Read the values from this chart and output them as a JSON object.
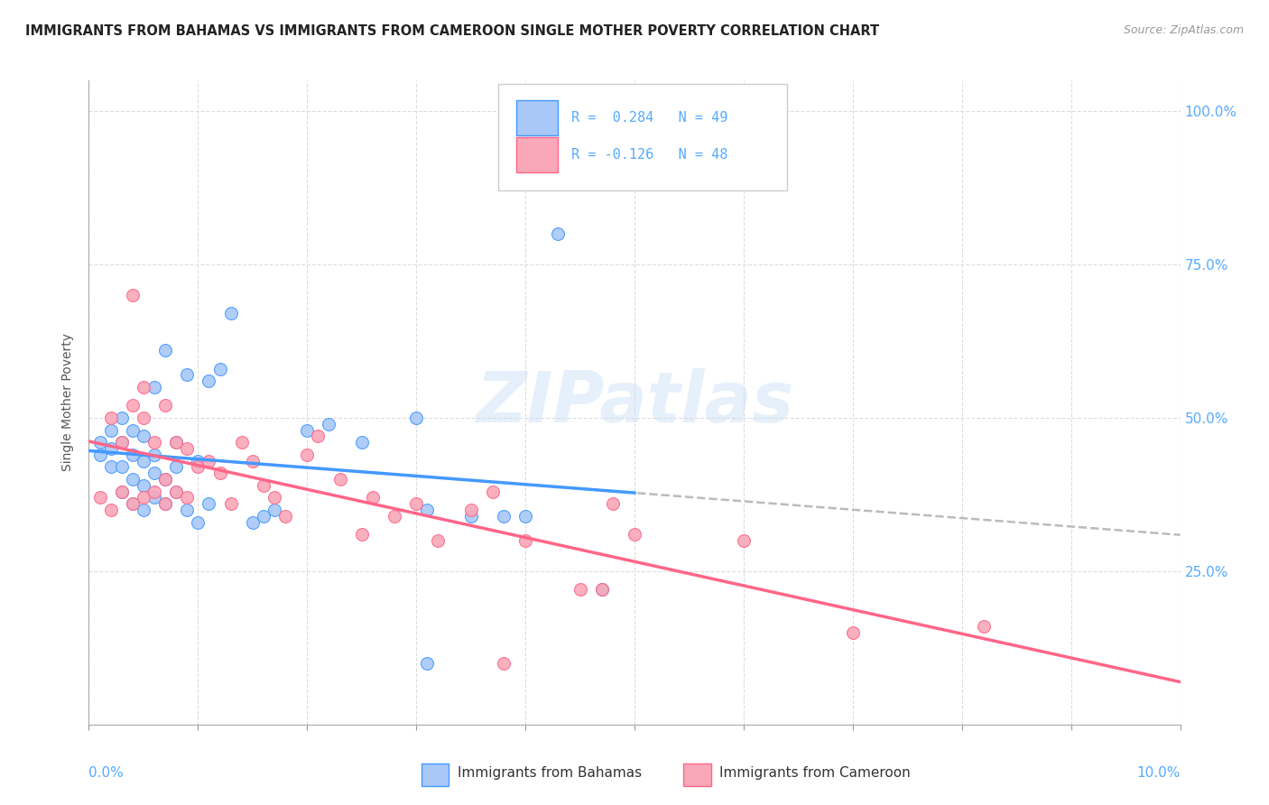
{
  "title": "IMMIGRANTS FROM BAHAMAS VS IMMIGRANTS FROM CAMEROON SINGLE MOTHER POVERTY CORRELATION CHART",
  "source": "Source: ZipAtlas.com",
  "ylabel": "Single Mother Poverty",
  "watermark": "ZIPatlas",
  "color_bahamas": "#a8c8f8",
  "color_cameroon": "#f8a8b8",
  "line_color_bahamas": "#4499ff",
  "line_color_cameroon": "#ff6688",
  "dashed_color": "#bbbbbb",
  "background_color": "#ffffff",
  "grid_color": "#dddddd",
  "xlim": [
    0.0,
    0.1
  ],
  "ylim": [
    0.0,
    1.05
  ],
  "right_tick_color": "#55aaff",
  "legend_text_color": "#55aaff",
  "bahamas_x": [
    0.001,
    0.001,
    0.002,
    0.002,
    0.002,
    0.003,
    0.003,
    0.003,
    0.003,
    0.004,
    0.004,
    0.004,
    0.004,
    0.005,
    0.005,
    0.005,
    0.005,
    0.006,
    0.006,
    0.006,
    0.006,
    0.007,
    0.007,
    0.007,
    0.008,
    0.008,
    0.008,
    0.009,
    0.009,
    0.01,
    0.01,
    0.011,
    0.011,
    0.012,
    0.013,
    0.015,
    0.016,
    0.017,
    0.02,
    0.022,
    0.025,
    0.03,
    0.031,
    0.035,
    0.038,
    0.04,
    0.043,
    0.047,
    0.031
  ],
  "bahamas_y": [
    0.44,
    0.46,
    0.42,
    0.45,
    0.48,
    0.38,
    0.42,
    0.46,
    0.5,
    0.36,
    0.4,
    0.44,
    0.48,
    0.35,
    0.39,
    0.43,
    0.47,
    0.37,
    0.41,
    0.44,
    0.55,
    0.36,
    0.4,
    0.61,
    0.38,
    0.42,
    0.46,
    0.35,
    0.57,
    0.33,
    0.43,
    0.36,
    0.56,
    0.58,
    0.67,
    0.33,
    0.34,
    0.35,
    0.48,
    0.49,
    0.46,
    0.5,
    0.35,
    0.34,
    0.34,
    0.34,
    0.8,
    0.22,
    0.1
  ],
  "cameroon_x": [
    0.001,
    0.002,
    0.002,
    0.003,
    0.003,
    0.004,
    0.004,
    0.004,
    0.005,
    0.005,
    0.005,
    0.006,
    0.006,
    0.007,
    0.007,
    0.007,
    0.008,
    0.008,
    0.009,
    0.009,
    0.01,
    0.011,
    0.012,
    0.013,
    0.014,
    0.015,
    0.016,
    0.017,
    0.018,
    0.02,
    0.021,
    0.023,
    0.025,
    0.026,
    0.028,
    0.03,
    0.032,
    0.035,
    0.037,
    0.04,
    0.045,
    0.047,
    0.048,
    0.05,
    0.06,
    0.07,
    0.082,
    0.038
  ],
  "cameroon_y": [
    0.37,
    0.35,
    0.5,
    0.38,
    0.46,
    0.36,
    0.52,
    0.7,
    0.37,
    0.5,
    0.55,
    0.38,
    0.46,
    0.36,
    0.4,
    0.52,
    0.38,
    0.46,
    0.37,
    0.45,
    0.42,
    0.43,
    0.41,
    0.36,
    0.46,
    0.43,
    0.39,
    0.37,
    0.34,
    0.44,
    0.47,
    0.4,
    0.31,
    0.37,
    0.34,
    0.36,
    0.3,
    0.35,
    0.38,
    0.3,
    0.22,
    0.22,
    0.36,
    0.31,
    0.3,
    0.15,
    0.16,
    0.1
  ]
}
